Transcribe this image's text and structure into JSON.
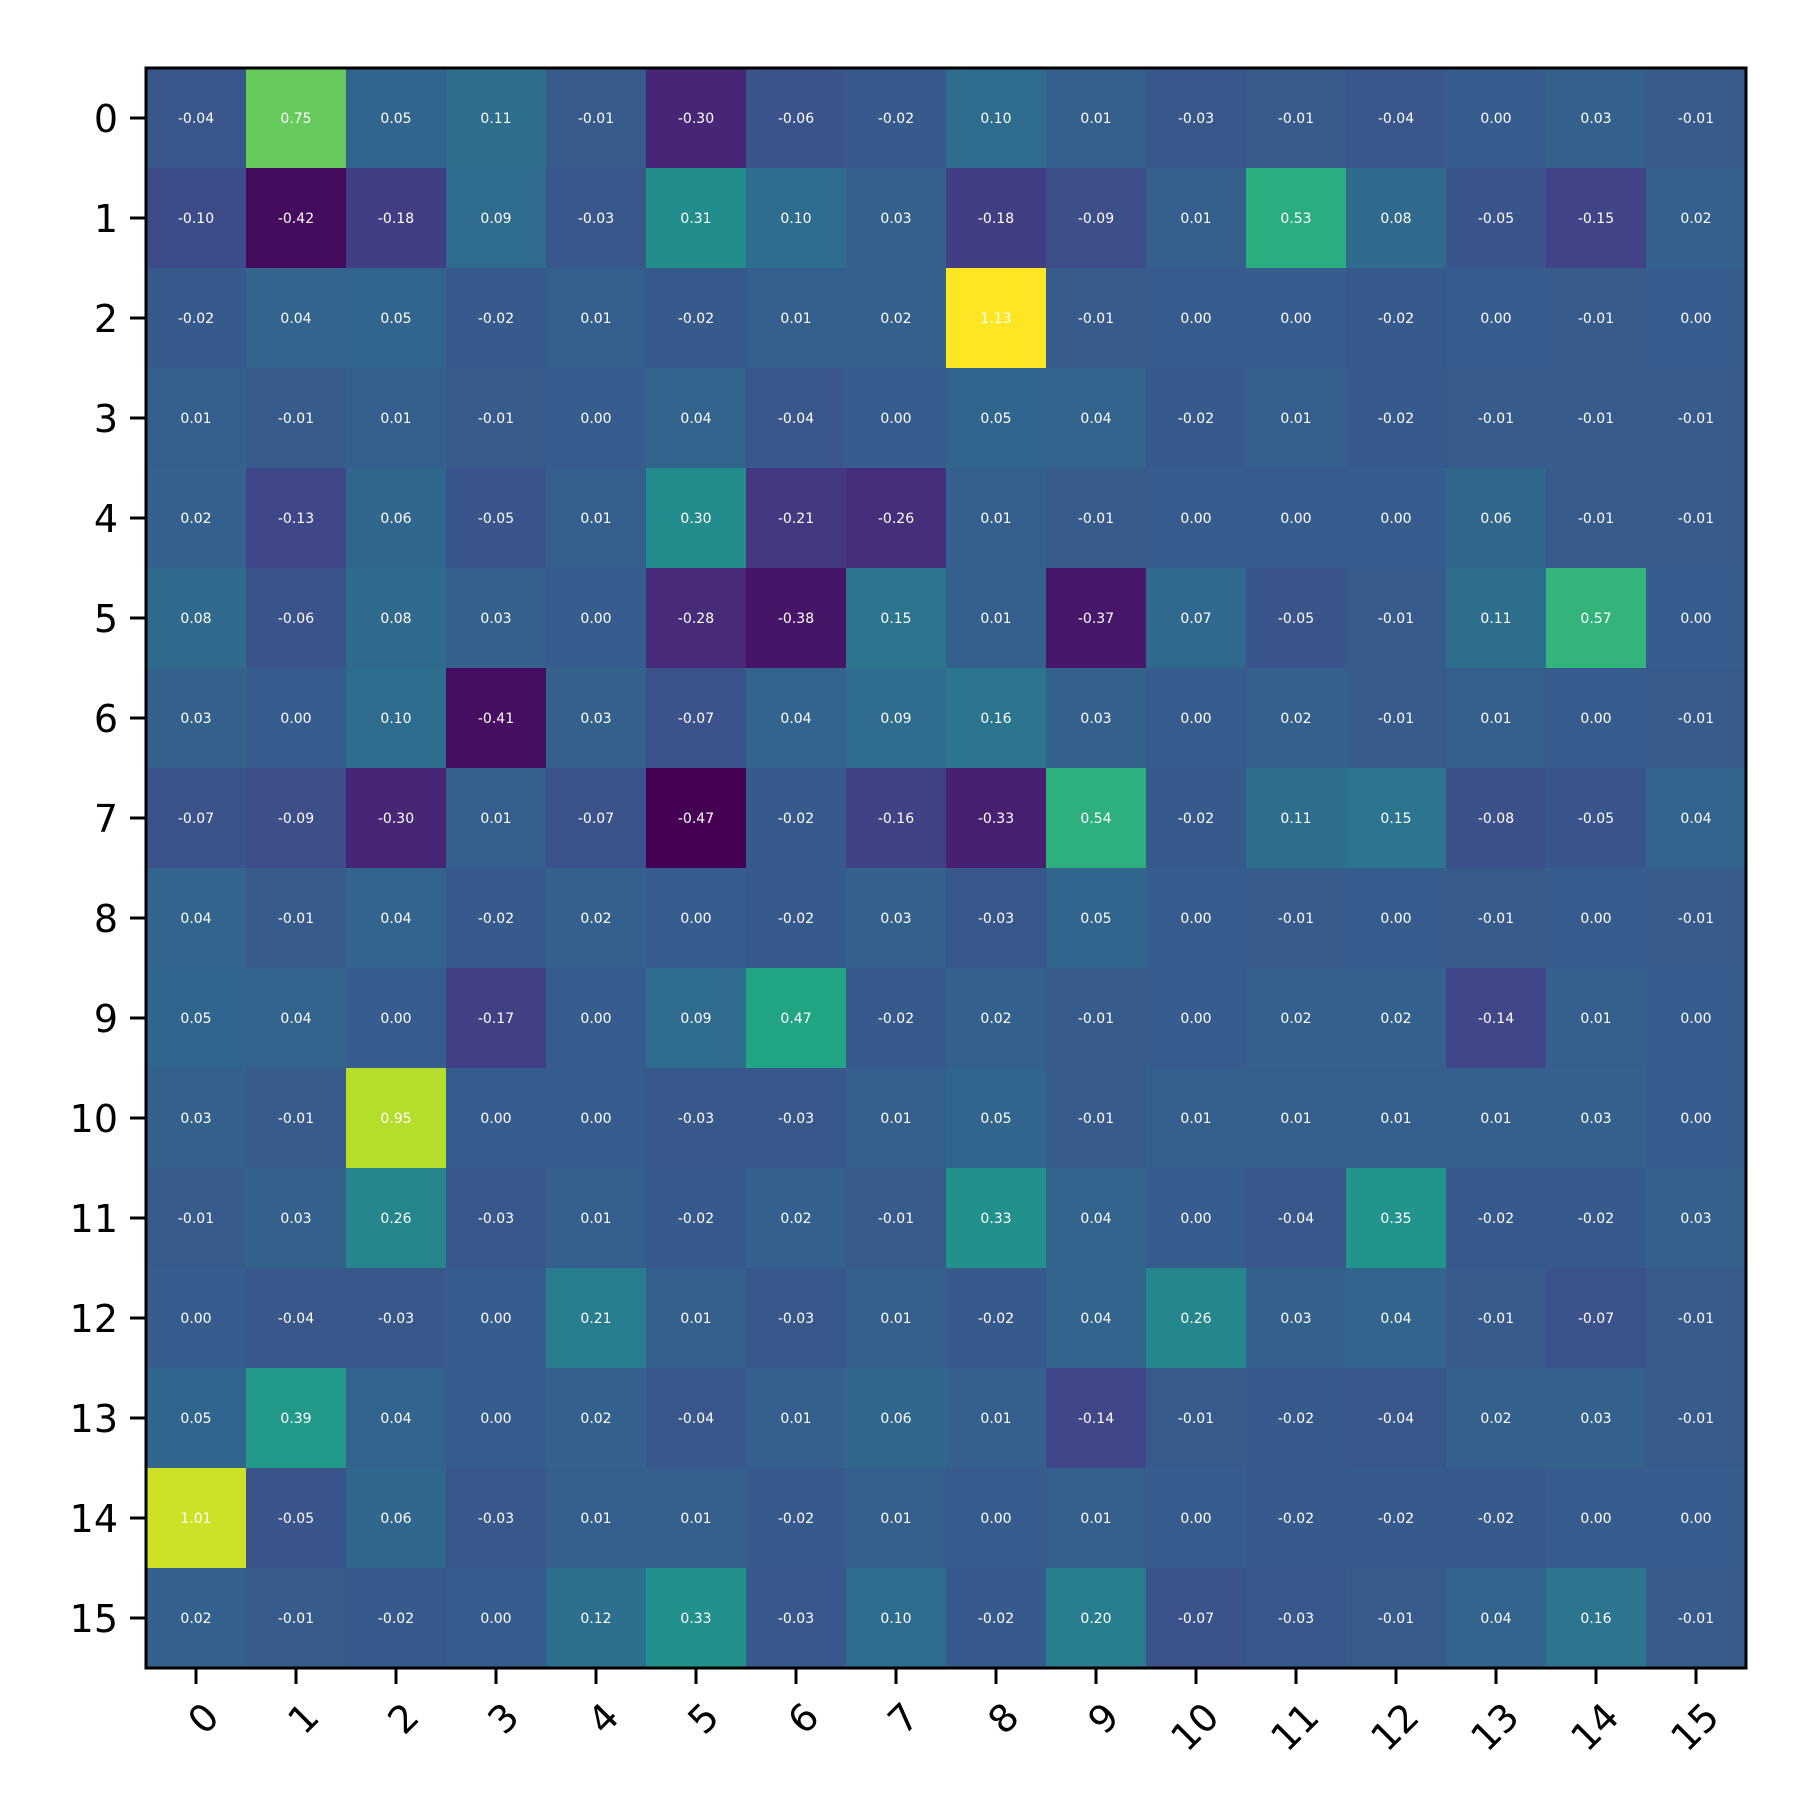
{
  "chart_data": {
    "type": "heatmap",
    "title": "",
    "xlabel": "",
    "ylabel": "",
    "colormap": "viridis",
    "vmin": -0.47,
    "vmax": 1.13,
    "x_categories": [
      "0",
      "1",
      "2",
      "3",
      "4",
      "5",
      "6",
      "7",
      "8",
      "9",
      "10",
      "11",
      "12",
      "13",
      "14",
      "15"
    ],
    "y_categories": [
      "0",
      "1",
      "2",
      "3",
      "4",
      "5",
      "6",
      "7",
      "8",
      "9",
      "10",
      "11",
      "12",
      "13",
      "14",
      "15"
    ],
    "values": [
      [
        -0.04,
        0.75,
        0.05,
        0.11,
        -0.01,
        -0.3,
        -0.06,
        -0.02,
        0.1,
        0.01,
        -0.03,
        -0.01,
        -0.04,
        0.0,
        0.03,
        -0.01
      ],
      [
        -0.1,
        -0.42,
        -0.18,
        0.09,
        -0.03,
        0.31,
        0.1,
        0.03,
        -0.18,
        -0.09,
        0.01,
        0.53,
        0.08,
        -0.05,
        -0.15,
        0.02
      ],
      [
        -0.02,
        0.04,
        0.05,
        -0.02,
        0.01,
        -0.02,
        0.01,
        0.02,
        1.13,
        -0.01,
        0.0,
        0.0,
        -0.02,
        -0.0,
        -0.01,
        -0.0
      ],
      [
        0.01,
        -0.01,
        0.01,
        -0.01,
        -0.0,
        0.04,
        -0.04,
        0.0,
        0.05,
        0.04,
        -0.02,
        0.01,
        -0.02,
        -0.01,
        -0.01,
        -0.01
      ],
      [
        0.02,
        -0.13,
        0.06,
        -0.05,
        0.01,
        0.3,
        -0.21,
        -0.26,
        0.01,
        -0.01,
        0.0,
        0.0,
        -0.0,
        0.06,
        -0.01,
        -0.01
      ],
      [
        0.08,
        -0.06,
        0.08,
        0.03,
        0.0,
        -0.28,
        -0.38,
        0.15,
        0.01,
        -0.37,
        0.07,
        -0.05,
        -0.01,
        0.11,
        0.57,
        -0.0
      ],
      [
        0.03,
        -0.0,
        0.1,
        -0.41,
        0.03,
        -0.07,
        0.04,
        0.09,
        0.16,
        0.03,
        0.0,
        0.02,
        -0.01,
        0.01,
        -0.0,
        -0.01
      ],
      [
        -0.07,
        -0.09,
        -0.3,
        0.01,
        -0.07,
        -0.47,
        -0.02,
        -0.16,
        -0.33,
        0.54,
        -0.02,
        0.11,
        0.15,
        -0.08,
        -0.05,
        0.04
      ],
      [
        0.04,
        -0.01,
        0.04,
        -0.02,
        0.02,
        0.0,
        -0.02,
        0.03,
        -0.03,
        0.05,
        0.0,
        -0.01,
        -0.0,
        -0.01,
        -0.0,
        -0.01
      ],
      [
        0.05,
        0.04,
        0.0,
        -0.17,
        0.0,
        0.09,
        0.47,
        -0.02,
        0.02,
        -0.01,
        0.0,
        0.02,
        0.02,
        -0.14,
        0.01,
        0.0
      ],
      [
        0.03,
        -0.01,
        0.95,
        0.0,
        -0.0,
        -0.03,
        -0.03,
        0.01,
        0.05,
        -0.01,
        0.01,
        0.01,
        0.01,
        0.01,
        0.03,
        0.0
      ],
      [
        -0.01,
        0.03,
        0.26,
        -0.03,
        0.01,
        -0.02,
        0.02,
        -0.01,
        0.33,
        0.04,
        0.0,
        -0.04,
        0.35,
        -0.02,
        -0.02,
        0.03
      ],
      [
        -0.0,
        -0.04,
        -0.03,
        -0.0,
        0.21,
        0.01,
        -0.03,
        0.01,
        -0.02,
        0.04,
        0.26,
        0.03,
        0.04,
        -0.01,
        -0.07,
        -0.01
      ],
      [
        0.05,
        0.39,
        0.04,
        -0.0,
        0.02,
        -0.04,
        0.01,
        0.06,
        0.01,
        -0.14,
        -0.01,
        -0.02,
        -0.04,
        0.02,
        0.03,
        -0.01
      ],
      [
        1.01,
        -0.05,
        0.06,
        -0.03,
        0.01,
        0.01,
        -0.02,
        0.01,
        0.0,
        0.01,
        0.0,
        -0.02,
        -0.02,
        -0.02,
        -0.0,
        0.0
      ],
      [
        0.02,
        -0.01,
        -0.02,
        -0.0,
        0.12,
        0.33,
        -0.03,
        0.1,
        -0.02,
        0.2,
        -0.07,
        -0.03,
        -0.01,
        0.04,
        0.16,
        -0.01
      ]
    ],
    "grid": false,
    "legend": "none"
  }
}
